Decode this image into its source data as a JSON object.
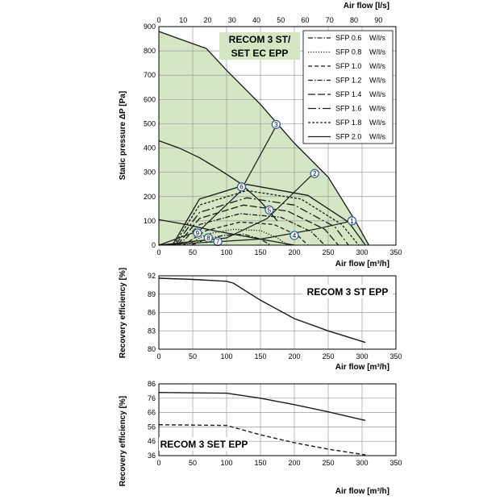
{
  "chart_data": [
    {
      "type": "line",
      "title": "RECOM 3 ST/",
      "title_line2": "SET EC EPP",
      "xlabel": "Air flow [m³/h]",
      "ylabel": "Static pressure ΔP [Pa]",
      "x2label": "Air flow [l/s]",
      "xlim": [
        0,
        350
      ],
      "ylim": [
        0,
        900
      ],
      "x2lim": [
        0,
        97.2
      ],
      "xticks": [
        0,
        50,
        100,
        150,
        200,
        250,
        300,
        350
      ],
      "yticks": [
        0,
        100,
        200,
        300,
        400,
        500,
        600,
        700,
        800,
        900
      ],
      "x2ticks": [
        0,
        10,
        20,
        30,
        40,
        50,
        60,
        70,
        80,
        90
      ],
      "grid": true,
      "area_color": "#d4e6c3",
      "operating_area": [
        [
          0,
          880
        ],
        [
          30,
          850
        ],
        [
          70,
          810
        ],
        [
          100,
          720
        ],
        [
          150,
          580
        ],
        [
          200,
          420
        ],
        [
          250,
          280
        ],
        [
          290,
          100
        ],
        [
          310,
          0
        ],
        [
          0,
          0
        ]
      ],
      "fan_curves": [
        {
          "x": [
            0,
            30,
            70,
            100,
            150,
            200,
            250,
            290,
            310
          ],
          "y": [
            880,
            850,
            810,
            720,
            580,
            420,
            280,
            100,
            0
          ]
        },
        {
          "x": [
            0,
            30,
            60,
            90,
            120,
            150,
            175
          ],
          "y": [
            430,
            400,
            360,
            310,
            255,
            180,
            100
          ]
        },
        {
          "x": [
            0,
            40,
            80,
            120,
            160,
            200
          ],
          "y": [
            105,
            85,
            60,
            40,
            20,
            0
          ]
        }
      ],
      "legend_position": "top-right",
      "sfp_unit": "W/l/s",
      "sfp_series": [
        {
          "name": "SFP 0.6",
          "style": "dashdot",
          "x": [
            48,
            70,
            95,
            125,
            150,
            165
          ],
          "y": [
            0,
            25,
            40,
            45,
            25,
            0
          ]
        },
        {
          "name": "SFP 0.8",
          "style": "dotted",
          "x": [
            42,
            70,
            110,
            150,
            175,
            190
          ],
          "y": [
            0,
            45,
            65,
            60,
            30,
            0
          ]
        },
        {
          "name": "SFP 1.0",
          "style": "dashed",
          "x": [
            36,
            70,
            120,
            170,
            205,
            220
          ],
          "y": [
            0,
            60,
            95,
            85,
            40,
            0
          ]
        },
        {
          "name": "SFP 1.2",
          "style": "dashdot",
          "x": [
            30,
            60,
            120,
            180,
            225,
            245
          ],
          "y": [
            0,
            85,
            130,
            115,
            55,
            0
          ]
        },
        {
          "name": "SFP 1.4",
          "style": "longdash",
          "x": [
            27,
            60,
            125,
            190,
            245,
            265
          ],
          "y": [
            0,
            110,
            165,
            140,
            65,
            0
          ]
        },
        {
          "name": "SFP 1.6",
          "style": "longdashdot",
          "x": [
            24,
            60,
            130,
            200,
            260,
            280
          ],
          "y": [
            0,
            135,
            195,
            165,
            75,
            0
          ]
        },
        {
          "name": "SFP 1.8",
          "style": "shortdash",
          "x": [
            22,
            60,
            130,
            210,
            270,
            295
          ],
          "y": [
            0,
            165,
            225,
            190,
            85,
            0
          ]
        },
        {
          "name": "SFP 2.0",
          "style": "solid",
          "x": [
            20,
            60,
            130,
            220,
            280,
            305
          ],
          "y": [
            0,
            190,
            250,
            205,
            95,
            0
          ]
        }
      ],
      "system_curves": [
        {
          "x": [
            0,
            60,
            120,
            175
          ],
          "y": [
            0,
            60,
            220,
            500
          ]
        },
        {
          "x": [
            0,
            100,
            160,
            230
          ],
          "y": [
            0,
            30,
            110,
            300
          ]
        },
        {
          "x": [
            0,
            150,
            230,
            285
          ],
          "y": [
            0,
            25,
            65,
            100
          ]
        }
      ],
      "operating_points": [
        {
          "label": "1",
          "x": 285,
          "y": 100
        },
        {
          "label": "2",
          "x": 230,
          "y": 295
        },
        {
          "label": "3",
          "x": 173,
          "y": 497
        },
        {
          "label": "4",
          "x": 200,
          "y": 40
        },
        {
          "label": "5",
          "x": 163,
          "y": 145
        },
        {
          "label": "6",
          "x": 122,
          "y": 240
        },
        {
          "label": "7",
          "x": 87,
          "y": 15
        },
        {
          "label": "8",
          "x": 73,
          "y": 30
        },
        {
          "label": "9",
          "x": 57,
          "y": 50
        }
      ]
    },
    {
      "type": "line",
      "title": "RECOM 3 ST EPP",
      "xlabel": "Air flow [m³/h]",
      "ylabel": "Recovery efficiency [%]",
      "xlim": [
        0,
        350
      ],
      "ylim": [
        80,
        92
      ],
      "xticks": [
        0,
        50,
        100,
        150,
        200,
        250,
        300,
        350
      ],
      "yticks": [
        80,
        83,
        86,
        89,
        92
      ],
      "grid": true,
      "series": [
        {
          "style": "solid",
          "x": [
            0,
            50,
            100,
            110,
            150,
            200,
            250,
            305
          ],
          "y": [
            91.6,
            91.4,
            91.1,
            90.8,
            88,
            85,
            83,
            81.1
          ]
        }
      ]
    },
    {
      "type": "line",
      "title": "RECOM 3 SET EPP",
      "xlabel": "Air flow [m³/h]",
      "ylabel": "Recovery efficiency [%]",
      "xlim": [
        0,
        350
      ],
      "ylim": [
        36,
        86
      ],
      "xticks": [
        0,
        50,
        100,
        150,
        200,
        250,
        300,
        350
      ],
      "yticks": [
        36,
        46,
        56,
        66,
        76,
        86
      ],
      "grid": true,
      "series": [
        {
          "style": "solid",
          "x": [
            0,
            100,
            150,
            200,
            250,
            305
          ],
          "y": [
            80,
            79.5,
            76,
            71.5,
            66.5,
            60.5
          ]
        },
        {
          "style": "dashed",
          "x": [
            0,
            100,
            150,
            200,
            250,
            305
          ],
          "y": [
            57.5,
            57,
            50.5,
            45,
            40.5,
            36.5
          ]
        }
      ]
    }
  ]
}
